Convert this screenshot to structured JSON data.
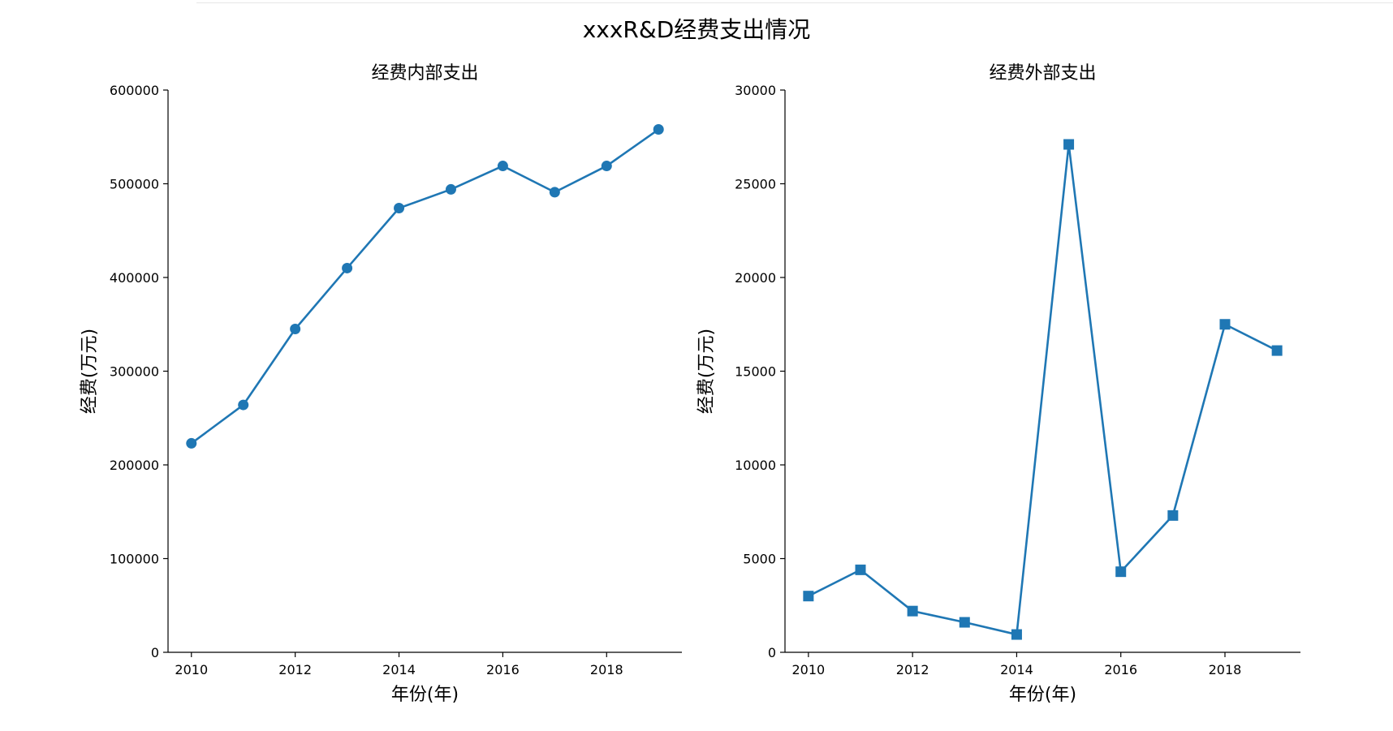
{
  "figure": {
    "title": "xxxR&D经费支出情况"
  },
  "colors": {
    "series": "#1f77b4",
    "axis": "#000000"
  },
  "chart_data": [
    {
      "type": "line",
      "title": "经费内部支出",
      "xlabel": "年份(年)",
      "ylabel": "经费(万元)",
      "marker": "circle",
      "xlim": [
        2009.55,
        2019.45
      ],
      "ylim": [
        0,
        600000
      ],
      "xticks": [
        2010,
        2012,
        2014,
        2016,
        2018
      ],
      "yticks": [
        0,
        100000,
        200000,
        300000,
        400000,
        500000,
        600000
      ],
      "grid": false,
      "spines": "left-bottom",
      "x": [
        2010,
        2011,
        2012,
        2013,
        2014,
        2015,
        2016,
        2017,
        2018,
        2019
      ],
      "series": [
        {
          "values": [
            223000,
            264000,
            345000,
            410000,
            474000,
            494000,
            519000,
            491000,
            519000,
            558000
          ]
        }
      ]
    },
    {
      "type": "line",
      "title": "经费外部支出",
      "xlabel": "年份(年)",
      "ylabel": "经费(万元)",
      "marker": "square",
      "xlim": [
        2009.55,
        2019.45
      ],
      "ylim": [
        0,
        30000
      ],
      "xticks": [
        2010,
        2012,
        2014,
        2016,
        2018
      ],
      "yticks": [
        0,
        5000,
        10000,
        15000,
        20000,
        25000,
        30000
      ],
      "grid": false,
      "spines": "left-bottom",
      "x": [
        2010,
        2011,
        2012,
        2013,
        2014,
        2015,
        2016,
        2017,
        2018,
        2019
      ],
      "series": [
        {
          "values": [
            3000,
            4400,
            2200,
            1600,
            950,
            27100,
            4300,
            7300,
            17500,
            16100
          ]
        }
      ]
    }
  ]
}
